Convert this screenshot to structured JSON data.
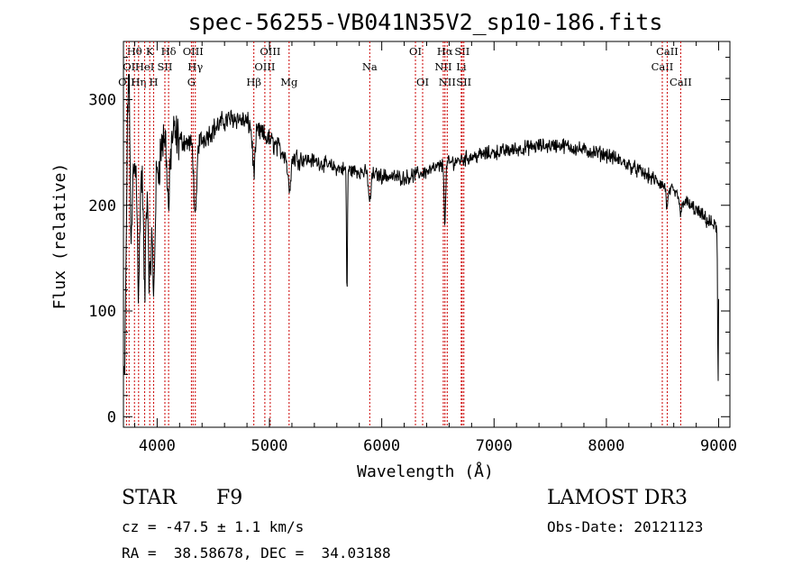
{
  "chart_data": {
    "type": "line",
    "title": "spec-56255-VB041N35V2_sp10-186.fits",
    "xlabel": "Wavelength (Å)",
    "ylabel": "Flux (relative)",
    "xlim": [
      3700,
      9100
    ],
    "ylim": [
      -10,
      355
    ],
    "xticks": [
      4000,
      5000,
      6000,
      7000,
      8000,
      9000
    ],
    "yticks": [
      0,
      100,
      200,
      300
    ],
    "lines_color": "#cc0000",
    "spectrum_color": "#000000",
    "spectral_lines": [
      {
        "name": "OII",
        "wave": 3727,
        "row": 3
      },
      {
        "name": "Hθ",
        "wave": 3798,
        "row": 1
      },
      {
        "name": "OI",
        "wave": 3750,
        "row": 2
      },
      {
        "name": "Hη",
        "wave": 3835,
        "row": 3
      },
      {
        "name": "HeI",
        "wave": 3889,
        "row": 2
      },
      {
        "name": "K",
        "wave": 3934,
        "row": 1
      },
      {
        "name": "H",
        "wave": 3969,
        "row": 3
      },
      {
        "name": "SII",
        "wave": 4069,
        "row": 2
      },
      {
        "name": "Hδ",
        "wave": 4102,
        "row": 1
      },
      {
        "name": "OIII",
        "wave": 4320,
        "row": 1
      },
      {
        "name": "Hγ",
        "wave": 4340,
        "row": 2
      },
      {
        "name": "G",
        "wave": 4305,
        "row": 3
      },
      {
        "name": "Hβ",
        "wave": 4861,
        "row": 3
      },
      {
        "name": "OIII",
        "wave": 4959,
        "row": 2
      },
      {
        "name": "OIII",
        "wave": 5007,
        "row": 1
      },
      {
        "name": "Mg",
        "wave": 5175,
        "row": 3
      },
      {
        "name": "Na",
        "wave": 5893,
        "row": 2
      },
      {
        "name": "OI",
        "wave": 6300,
        "row": 1
      },
      {
        "name": "OI",
        "wave": 6364,
        "row": 3
      },
      {
        "name": "NII",
        "wave": 6548,
        "row": 2
      },
      {
        "name": "Hα",
        "wave": 6563,
        "row": 1
      },
      {
        "name": "NII",
        "wave": 6583,
        "row": 3
      },
      {
        "name": "Li",
        "wave": 6708,
        "row": 2
      },
      {
        "name": "SII",
        "wave": 6716,
        "row": 1
      },
      {
        "name": "SII",
        "wave": 6731,
        "row": 3
      },
      {
        "name": "CaII",
        "wave": 8498,
        "row": 2
      },
      {
        "name": "CaII",
        "wave": 8542,
        "row": 1
      },
      {
        "name": "CaII",
        "wave": 8662,
        "row": 3
      }
    ],
    "continuum": [
      [
        3700,
        150
      ],
      [
        3720,
        220
      ],
      [
        3760,
        240
      ],
      [
        3800,
        235
      ],
      [
        3850,
        225
      ],
      [
        3900,
        220
      ],
      [
        3950,
        210
      ],
      [
        4000,
        230
      ],
      [
        4050,
        262
      ],
      [
        4100,
        268
      ],
      [
        4200,
        262
      ],
      [
        4300,
        258
      ],
      [
        4400,
        262
      ],
      [
        4500,
        272
      ],
      [
        4600,
        280
      ],
      [
        4700,
        283
      ],
      [
        4800,
        278
      ],
      [
        4900,
        270
      ],
      [
        5000,
        262
      ],
      [
        5100,
        252
      ],
      [
        5200,
        246
      ],
      [
        5400,
        242
      ],
      [
        5600,
        235
      ],
      [
        5800,
        232
      ],
      [
        6000,
        228
      ],
      [
        6200,
        226
      ],
      [
        6400,
        232
      ],
      [
        6600,
        240
      ],
      [
        6800,
        246
      ],
      [
        7000,
        250
      ],
      [
        7200,
        253
      ],
      [
        7400,
        256
      ],
      [
        7600,
        257
      ],
      [
        7800,
        252
      ],
      [
        8000,
        248
      ],
      [
        8200,
        238
      ],
      [
        8400,
        226
      ],
      [
        8600,
        212
      ],
      [
        8800,
        195
      ],
      [
        8900,
        185
      ],
      [
        9000,
        178
      ]
    ],
    "features": [
      {
        "wave": 3710,
        "depth": -150,
        "width": 12
      },
      {
        "wave": 3745,
        "depth": 90,
        "width": 10
      },
      {
        "wave": 3770,
        "depth": -80,
        "width": 8
      },
      {
        "wave": 3835,
        "depth": -120,
        "width": 8
      },
      {
        "wave": 3889,
        "depth": -110,
        "width": 8
      },
      {
        "wave": 3934,
        "depth": -90,
        "width": 10
      },
      {
        "wave": 3969,
        "depth": -100,
        "width": 10
      },
      {
        "wave": 4102,
        "depth": -70,
        "width": 12
      },
      {
        "wave": 4340,
        "depth": -75,
        "width": 12
      },
      {
        "wave": 4861,
        "depth": -40,
        "width": 12
      },
      {
        "wave": 5175,
        "depth": -30,
        "width": 14
      },
      {
        "wave": 5690,
        "depth": -125,
        "width": 4
      },
      {
        "wave": 5893,
        "depth": -28,
        "width": 10
      },
      {
        "wave": 6563,
        "depth": -60,
        "width": 6
      },
      {
        "wave": 8542,
        "depth": -20,
        "width": 8
      },
      {
        "wave": 8662,
        "depth": -18,
        "width": 8
      },
      {
        "wave": 8995,
        "depth": -150,
        "width": 4
      }
    ]
  },
  "info": {
    "object_class": "STAR",
    "subclass": "F9",
    "survey": "LAMOST DR3",
    "redshift": "cz = -47.5 ± 1.1 km/s",
    "obs_date": "Obs-Date: 20121123",
    "coords": "RA =  38.58678, DEC =  34.03188"
  }
}
